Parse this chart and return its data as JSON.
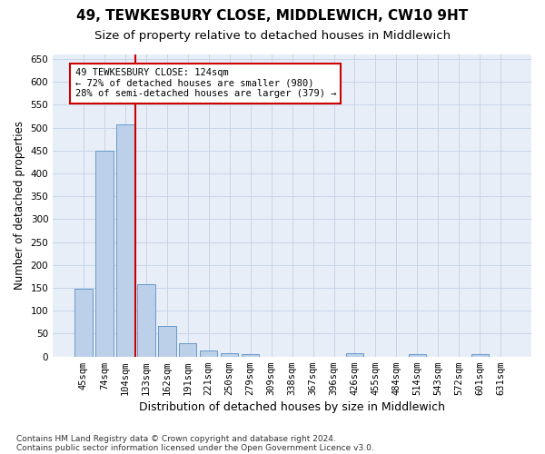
{
  "title": "49, TEWKESBURY CLOSE, MIDDLEWICH, CW10 9HT",
  "subtitle": "Size of property relative to detached houses in Middlewich",
  "xlabel": "Distribution of detached houses by size in Middlewich",
  "ylabel": "Number of detached properties",
  "footnote1": "Contains HM Land Registry data © Crown copyright and database right 2024.",
  "footnote2": "Contains public sector information licensed under the Open Government Licence v3.0.",
  "bar_labels": [
    "45sqm",
    "74sqm",
    "104sqm",
    "133sqm",
    "162sqm",
    "191sqm",
    "221sqm",
    "250sqm",
    "279sqm",
    "309sqm",
    "338sqm",
    "367sqm",
    "396sqm",
    "426sqm",
    "455sqm",
    "484sqm",
    "514sqm",
    "543sqm",
    "572sqm",
    "601sqm",
    "631sqm"
  ],
  "bar_values": [
    148,
    450,
    507,
    158,
    66,
    30,
    13,
    8,
    5,
    0,
    0,
    0,
    0,
    7,
    0,
    0,
    5,
    0,
    0,
    5,
    0
  ],
  "bar_color": "#bdd0ea",
  "bar_edge_color": "#6699cc",
  "grid_color": "#c8d4e8",
  "vline_x_index": 2.5,
  "vline_color": "#cc0000",
  "annotation_text": "49 TEWKESBURY CLOSE: 124sqm\n← 72% of detached houses are smaller (980)\n28% of semi-detached houses are larger (379) →",
  "annotation_box_color": "#ffffff",
  "annotation_box_edge": "#cc0000",
  "ylim": [
    0,
    660
  ],
  "yticks": [
    0,
    50,
    100,
    150,
    200,
    250,
    300,
    350,
    400,
    450,
    500,
    550,
    600,
    650
  ],
  "background_color": "#e8eef8",
  "title_fontsize": 11,
  "subtitle_fontsize": 9.5,
  "xlabel_fontsize": 9,
  "ylabel_fontsize": 8.5,
  "tick_fontsize": 7.5,
  "annotation_fontsize": 7.5,
  "footnote_fontsize": 6.5
}
